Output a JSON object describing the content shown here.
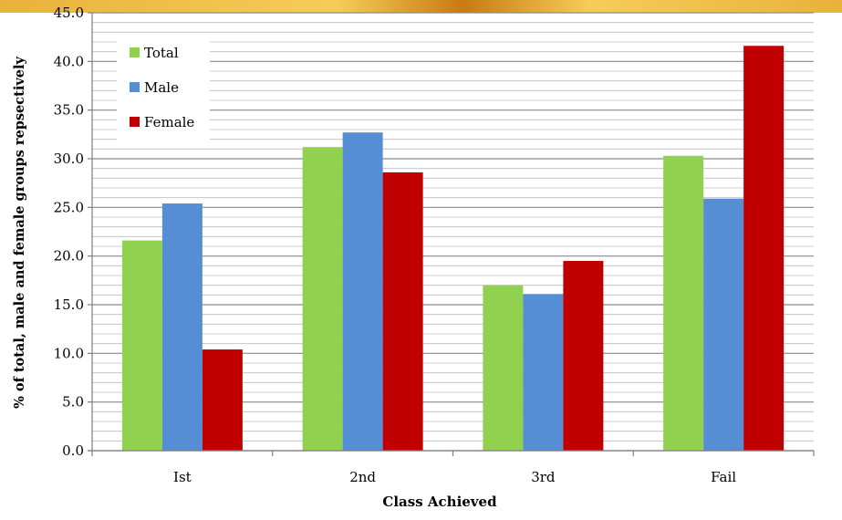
{
  "chart_data": {
    "type": "bar",
    "title": "",
    "xlabel": "Class Achieved",
    "ylabel": "% of total, male and female groups repsectively",
    "categories": [
      "Ist",
      "2nd",
      "3rd",
      "Fail"
    ],
    "ylim": [
      0,
      45
    ],
    "ytick_step": 5,
    "minor_grid_step": 1,
    "grid": true,
    "legend_position": "top-left",
    "series": [
      {
        "name": "Total",
        "color": "#92d050",
        "values": [
          21.6,
          31.2,
          17.0,
          30.3
        ]
      },
      {
        "name": "Male",
        "color": "#558ed5",
        "values": [
          25.4,
          32.7,
          16.1,
          25.9
        ]
      },
      {
        "name": "Female",
        "color": "#c00000",
        "values": [
          10.4,
          28.6,
          19.5,
          41.6
        ]
      }
    ]
  }
}
